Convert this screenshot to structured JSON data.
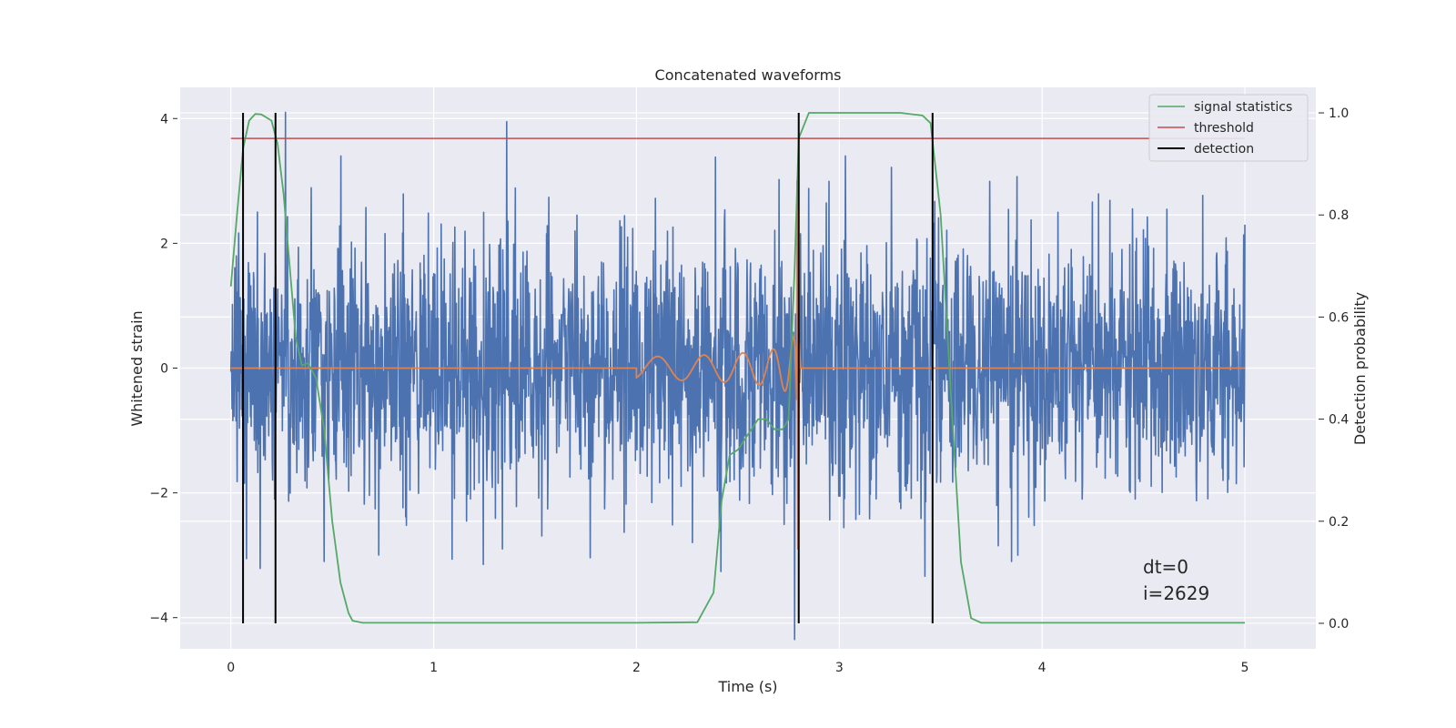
{
  "chart_data": {
    "type": "line",
    "title": "Concatenated waveforms",
    "xlabel": "Time (s)",
    "ylabel": "Whitened strain",
    "y2label": "Detection probability",
    "xlim": [
      -0.25,
      5.35
    ],
    "ylim": [
      -4.5,
      4.5
    ],
    "y2lim": [
      -0.05,
      1.05
    ],
    "xticks": [
      0,
      1,
      2,
      3,
      4,
      5
    ],
    "yticks": [
      -4,
      -2,
      0,
      2,
      4
    ],
    "y2ticks": [
      0.0,
      0.2,
      0.4,
      0.6,
      0.8,
      1.0
    ],
    "xtick_labels": [
      "0",
      "1",
      "2",
      "3",
      "4",
      "5"
    ],
    "ytick_labels": [
      "−4",
      "−2",
      "0",
      "2",
      "4"
    ],
    "y2tick_labels": [
      "0.0",
      "0.2",
      "0.4",
      "0.6",
      "0.8",
      "1.0"
    ],
    "grid": true,
    "legend_position": "top-right",
    "legend": [
      "signal statistics",
      "threshold",
      "detection"
    ],
    "colors": {
      "strain": "#4c72b0",
      "waveform": "#dd8452",
      "signal_statistics": "#55a868",
      "threshold": "#c44e52",
      "detection": "#000000",
      "plot_background": "#eaeaf2",
      "grid": "#ffffff"
    },
    "strain": {
      "x_range": [
        0,
        5
      ],
      "typical_amplitude": 1.0,
      "peak_spikes": [
        {
          "x": 0.27,
          "y": 4.1
        },
        {
          "x": 1.36,
          "y": 3.95
        },
        {
          "x": 2.78,
          "y": -4.35
        },
        {
          "x": 0.46,
          "y": -3.1
        },
        {
          "x": 3.85,
          "y": -3.1
        }
      ]
    },
    "waveform": {
      "x_start": 2.0,
      "x_merger": 2.79,
      "x_end": 5.0,
      "merger_peak": 3.0,
      "merger_trough": -2.9
    },
    "signal_statistics": {
      "x": [
        0.0,
        0.03,
        0.06,
        0.09,
        0.12,
        0.15,
        0.2,
        0.23,
        0.26,
        0.29,
        0.32,
        0.35,
        0.38,
        0.42,
        0.46,
        0.5,
        0.54,
        0.58,
        0.6,
        0.65,
        1.0,
        2.0,
        2.3,
        2.38,
        2.42,
        2.46,
        2.5,
        2.55,
        2.6,
        2.64,
        2.68,
        2.72,
        2.75,
        2.78,
        2.8,
        2.85,
        3.0,
        3.3,
        3.41,
        3.45,
        3.5,
        3.55,
        3.6,
        3.65,
        3.7,
        4.0,
        5.0
      ],
      "y": [
        0.66,
        0.8,
        0.93,
        0.985,
        0.998,
        0.997,
        0.985,
        0.94,
        0.84,
        0.7,
        0.56,
        0.505,
        0.51,
        0.48,
        0.38,
        0.2,
        0.08,
        0.02,
        0.005,
        0.001,
        0.001,
        0.001,
        0.002,
        0.06,
        0.24,
        0.33,
        0.34,
        0.37,
        0.4,
        0.4,
        0.38,
        0.38,
        0.4,
        0.7,
        0.95,
        1.0,
        1.0,
        1.0,
        0.995,
        0.98,
        0.8,
        0.45,
        0.12,
        0.01,
        0.001,
        0.001,
        0.001
      ]
    },
    "threshold": {
      "x": [
        0,
        5
      ],
      "y": 0.95
    },
    "detections": [
      0.06,
      0.22,
      2.8,
      3.46
    ],
    "annotations": [
      "dt=0",
      "i=2629"
    ]
  }
}
